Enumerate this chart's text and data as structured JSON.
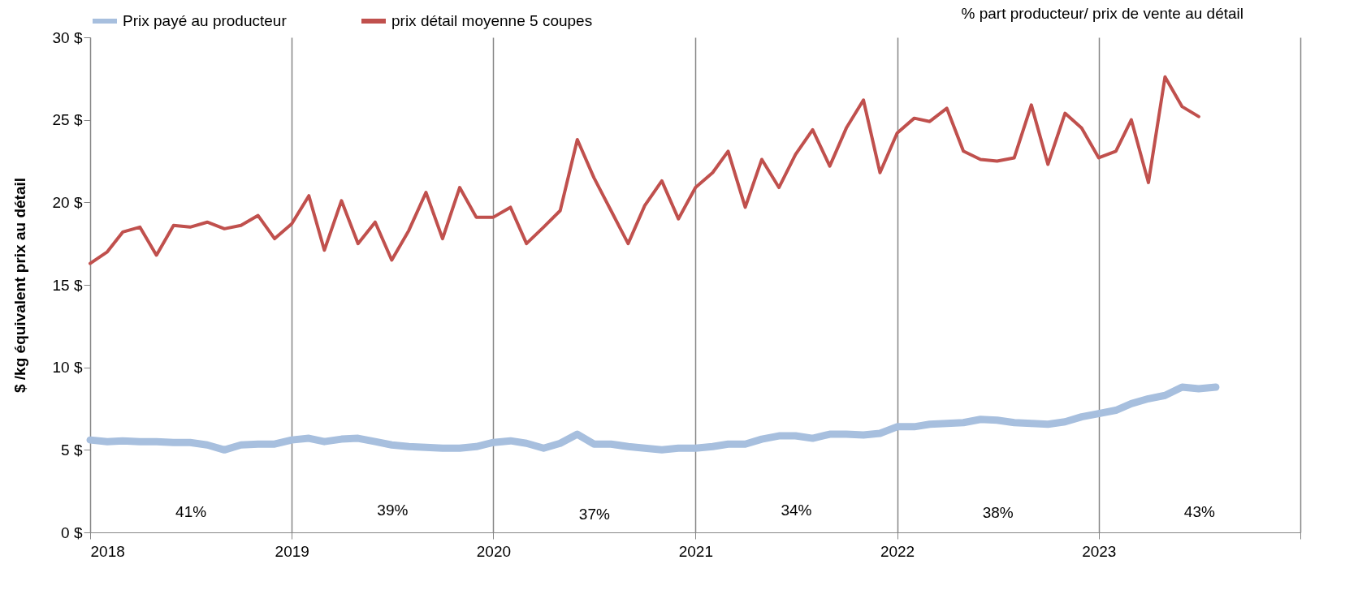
{
  "chart_data": {
    "type": "line",
    "ylabel": "$ /kg équivalent prix au détail",
    "x": [
      "2018-01",
      "2018-02",
      "2018-03",
      "2018-04",
      "2018-05",
      "2018-06",
      "2018-07",
      "2018-08",
      "2018-09",
      "2018-10",
      "2018-11",
      "2018-12",
      "2019-01",
      "2019-02",
      "2019-03",
      "2019-04",
      "2019-05",
      "2019-06",
      "2019-07",
      "2019-08",
      "2019-09",
      "2019-10",
      "2019-11",
      "2019-12",
      "2020-01",
      "2020-02",
      "2020-03",
      "2020-04",
      "2020-05",
      "2020-06",
      "2020-07",
      "2020-08",
      "2020-09",
      "2020-10",
      "2020-11",
      "2020-12",
      "2021-01",
      "2021-02",
      "2021-03",
      "2021-04",
      "2021-05",
      "2021-06",
      "2021-07",
      "2021-08",
      "2021-09",
      "2021-10",
      "2021-11",
      "2021-12",
      "2022-01",
      "2022-02",
      "2022-03",
      "2022-04",
      "2022-05",
      "2022-06",
      "2022-07",
      "2022-08",
      "2022-09",
      "2022-10",
      "2022-11",
      "2022-12",
      "2023-01",
      "2023-02",
      "2023-03",
      "2023-04",
      "2023-05",
      "2023-06",
      "2023-07",
      "2023-08"
    ],
    "series": [
      {
        "name": "Prix payé au producteur",
        "color": "#a7bfde",
        "values": [
          5.6,
          5.5,
          5.55,
          5.5,
          5.5,
          5.45,
          5.45,
          5.3,
          5.0,
          5.3,
          5.35,
          5.35,
          5.6,
          5.7,
          5.5,
          5.65,
          5.7,
          5.5,
          5.3,
          5.2,
          5.15,
          5.1,
          5.1,
          5.2,
          5.45,
          5.55,
          5.4,
          5.1,
          5.4,
          5.95,
          5.35,
          5.35,
          5.2,
          5.1,
          5.0,
          5.1,
          5.1,
          5.2,
          5.35,
          5.35,
          5.65,
          5.85,
          5.85,
          5.7,
          5.95,
          5.95,
          5.9,
          6.0,
          6.4,
          6.4,
          6.55,
          6.6,
          6.65,
          6.85,
          6.8,
          6.65,
          6.6,
          6.55,
          6.7,
          7.0,
          7.2,
          7.4,
          7.8,
          8.1,
          8.3,
          8.8,
          8.7,
          8.8
        ]
      },
      {
        "name": "prix détail moyenne 5 coupes",
        "color": "#c0504d",
        "values": [
          16.3,
          17.0,
          18.2,
          18.5,
          16.8,
          18.6,
          18.5,
          18.8,
          18.4,
          18.6,
          19.2,
          17.8,
          18.7,
          20.4,
          17.1,
          20.1,
          17.5,
          18.8,
          16.5,
          18.3,
          20.6,
          17.8,
          20.9,
          19.1,
          19.1,
          19.7,
          17.5,
          18.5,
          19.5,
          23.8,
          21.5,
          19.5,
          17.5,
          19.8,
          21.3,
          19.0,
          20.9,
          21.8,
          23.1,
          19.7,
          22.6,
          20.9,
          22.9,
          24.4,
          22.2,
          24.5,
          26.2,
          21.8,
          24.2,
          25.1,
          24.9,
          25.7,
          23.1,
          22.6,
          22.5,
          22.7,
          25.9,
          22.3,
          25.4,
          24.5,
          22.7,
          23.1,
          25.0,
          21.2,
          27.6,
          25.8,
          25.2,
          null
        ]
      }
    ],
    "xlim": [
      "2018",
      "2024"
    ],
    "xticks": [
      "2018",
      "2019",
      "2020",
      "2021",
      "2022",
      "2023",
      {
        "value": "2024",
        "label": null
      }
    ],
    "ylim": [
      0,
      30
    ],
    "yticks": [
      {
        "value": 0,
        "label": "0 $"
      },
      {
        "value": 5,
        "label": "5 $"
      },
      {
        "value": 10,
        "label": "10 $"
      },
      {
        "value": 15,
        "label": "15 $"
      },
      {
        "value": 20,
        "label": "20 $"
      },
      {
        "value": 25,
        "label": "25 $"
      },
      {
        "value": 30,
        "label": "30 $"
      }
    ],
    "grid": "x",
    "legend": "top",
    "marker": "none",
    "line_style": "solid",
    "annotations": [
      "% part producteur/ prix de vente au détail",
      "41%",
      "39%",
      "37%",
      "34%",
      "38%",
      "43%"
    ]
  }
}
